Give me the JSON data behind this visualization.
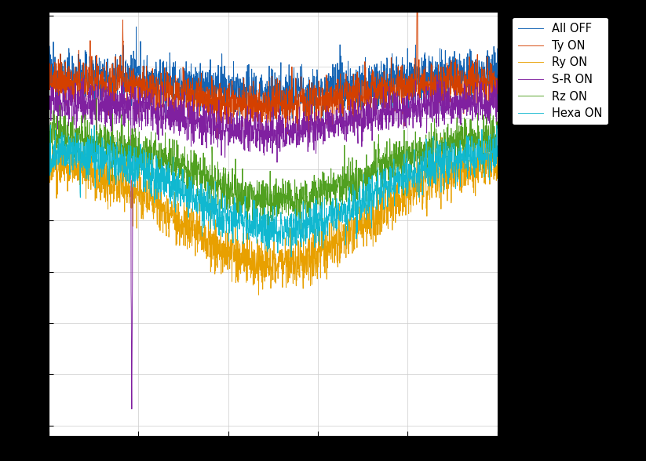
{
  "legend_labels": [
    "All OFF",
    "Ty ON",
    "Ry ON",
    "S-R ON",
    "Rz ON",
    "Hexa ON"
  ],
  "colors": [
    "#1464b4",
    "#d44000",
    "#e8a000",
    "#8020a0",
    "#50a020",
    "#10b8d0"
  ],
  "background_color": "#ffffff",
  "outer_background": "#000000",
  "figsize": [
    8.23,
    5.88
  ],
  "dpi": 100,
  "linewidth": 0.65
}
